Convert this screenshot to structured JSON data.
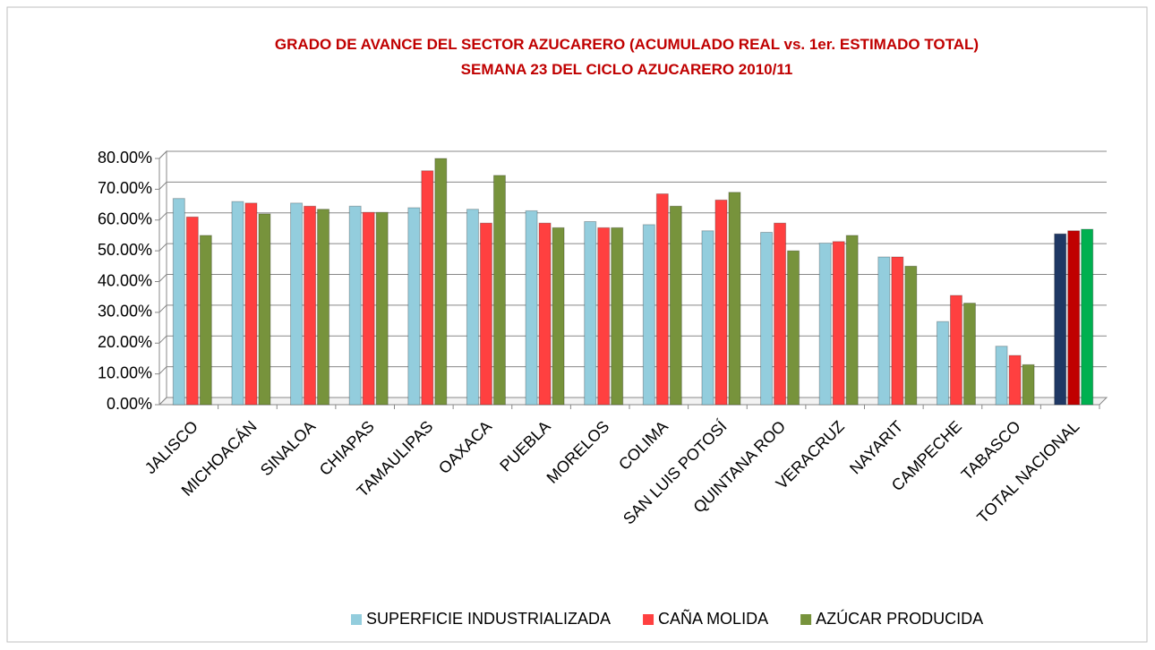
{
  "chart_data": {
    "type": "bar",
    "title": "GRADO DE AVANCE DEL SECTOR AZUCARERO (ACUMULADO REAL vs. 1er. ESTIMADO TOTAL)",
    "subtitle": "SEMANA 23 DEL CICLO AZUCARERO 2010/11",
    "categories": [
      "JALISCO",
      "MICHOACÁN",
      "SINALOA",
      "CHIAPAS",
      "TAMAULIPAS",
      "OAXACA",
      "PUEBLA",
      "MORELOS",
      "COLIMA",
      "SAN LUIS POTOSÍ",
      "QUINTANA ROO",
      "VERACRUZ",
      "NAYARIT",
      "CAMPECHE",
      "TABASCO",
      "TOTAL NACIONAL"
    ],
    "series": [
      {
        "name": "SUPERFICIE INDUSTRIALIZADA",
        "color": "#93cddd",
        "colors": [
          "#93cddd",
          "#93cddd",
          "#93cddd",
          "#93cddd",
          "#93cddd",
          "#93cddd",
          "#93cddd",
          "#93cddd",
          "#93cddd",
          "#93cddd",
          "#93cddd",
          "#93cddd",
          "#93cddd",
          "#93cddd",
          "#93cddd",
          "#1f3864"
        ],
        "values": [
          67,
          66,
          65.5,
          64.5,
          64,
          63.5,
          63,
          59.5,
          58.5,
          56.5,
          56,
          52.5,
          48,
          27,
          19,
          55.5
        ]
      },
      {
        "name": "CAÑA MOLIDA",
        "color": "#ff4040",
        "colors": [
          "#ff4040",
          "#ff4040",
          "#ff4040",
          "#ff4040",
          "#ff4040",
          "#ff4040",
          "#ff4040",
          "#ff4040",
          "#ff4040",
          "#ff4040",
          "#ff4040",
          "#ff4040",
          "#ff4040",
          "#ff4040",
          "#ff4040",
          "#c00000"
        ],
        "values": [
          61,
          65.5,
          64.5,
          62.5,
          76,
          59,
          59,
          57.5,
          68.5,
          66.5,
          59,
          53,
          48,
          35.5,
          16,
          56.5
        ]
      },
      {
        "name": "AZÚCAR PRODUCIDA",
        "color": "#77933c",
        "colors": [
          "#77933c",
          "#77933c",
          "#77933c",
          "#77933c",
          "#77933c",
          "#77933c",
          "#77933c",
          "#77933c",
          "#77933c",
          "#77933c",
          "#77933c",
          "#77933c",
          "#77933c",
          "#77933c",
          "#77933c",
          "#00b050"
        ],
        "values": [
          55,
          62,
          63.5,
          62.5,
          80,
          74.5,
          57.5,
          57.5,
          64.5,
          69,
          50,
          55,
          45,
          33,
          13,
          57
        ]
      }
    ],
    "ylim": [
      0,
      80
    ],
    "yticks": [
      {
        "value": 0,
        "label": "0.00%"
      },
      {
        "value": 10,
        "label": "10.00%"
      },
      {
        "value": 20,
        "label": "20.00%"
      },
      {
        "value": 30,
        "label": "30.00%"
      },
      {
        "value": 40,
        "label": "40.00%"
      },
      {
        "value": 50,
        "label": "50.00%"
      },
      {
        "value": 60,
        "label": "60.00%"
      },
      {
        "value": 70,
        "label": "70.00%"
      },
      {
        "value": 80,
        "label": "80.00%"
      }
    ],
    "grid": true
  }
}
